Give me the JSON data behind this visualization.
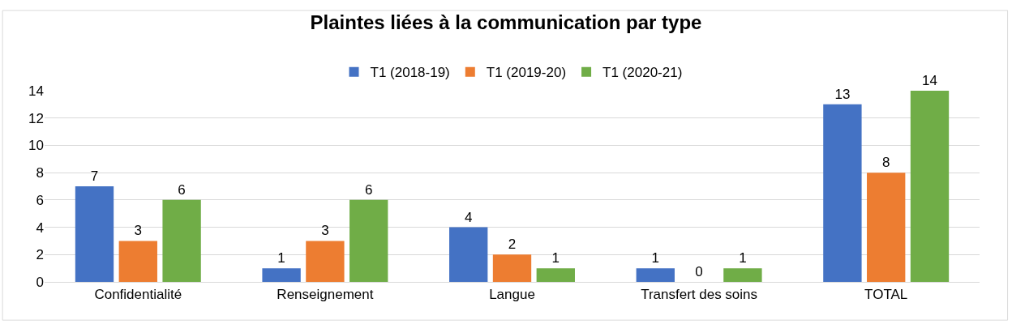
{
  "chart_data": {
    "type": "bar",
    "title": "Plaintes liées à la communication par type",
    "categories": [
      "Confidentialité",
      "Renseignement",
      "Langue",
      "Transfert des soins",
      "TOTAL"
    ],
    "series": [
      {
        "name": "T1 (2018-19)",
        "color": "#4472c4",
        "values": [
          7,
          1,
          4,
          1,
          13
        ]
      },
      {
        "name": "T1 (2019-20)",
        "color": "#ed7d31",
        "values": [
          3,
          3,
          2,
          0,
          8
        ]
      },
      {
        "name": "T1 (2020-21)",
        "color": "#70ad47",
        "values": [
          6,
          6,
          1,
          1,
          14
        ]
      }
    ],
    "ylim": [
      0,
      14
    ],
    "yticks": [
      0,
      2,
      4,
      6,
      8,
      10,
      12,
      14
    ],
    "grid": "y",
    "legend": "top",
    "data_labels": true
  }
}
